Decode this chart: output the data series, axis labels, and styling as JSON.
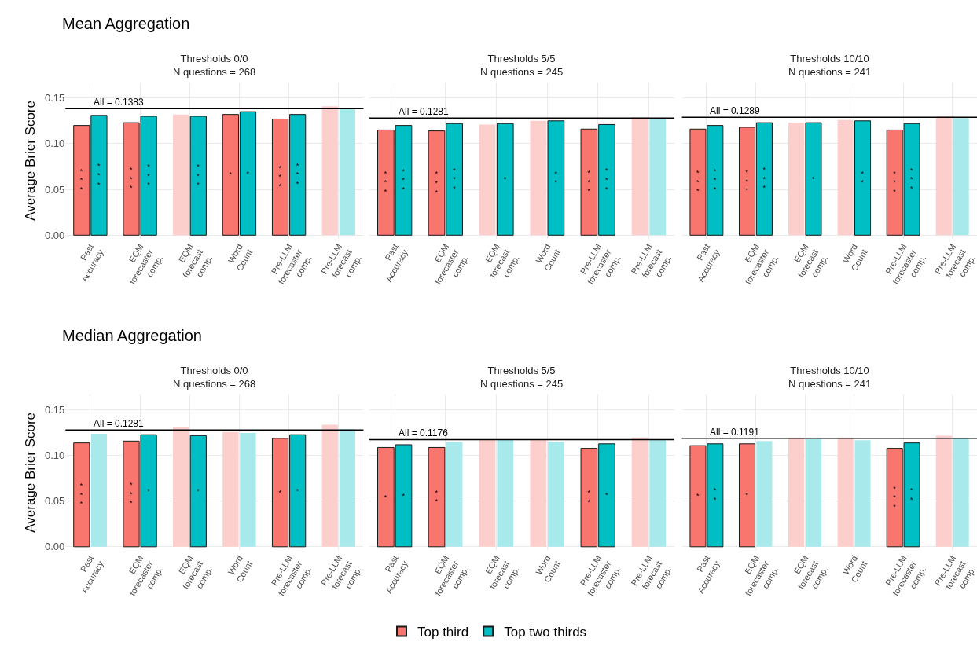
{
  "chart_data": [
    {
      "type": "bar",
      "title": "Thresholds 0/0\nN questions = 268",
      "annotations": [
        "Mean Aggregation"
      ],
      "ylabel": "Average Brier Score",
      "categories": [
        "Past\nAccuracy",
        "EQM\nforecaster\ncomp.",
        "EQM\nforecast\ncomp.",
        "Word\nCount",
        "Pre-LLM\nforecaster\ncomp.",
        "Pre-LLM\nforecast\ncomp."
      ],
      "series": [
        {
          "name": "Top third",
          "color": "#f8766d",
          "colors": [
            "#f8766d",
            "#f8766d",
            "#fccfcc",
            "#f8766d",
            "#f8766d",
            "#fccfcc"
          ],
          "values": [
            0.12,
            0.123,
            0.132,
            0.132,
            0.127,
            0.141
          ],
          "value_labels": [
            "*\n*\n*",
            "*\n*\n*",
            null,
            "*",
            "*\n*\n*",
            null
          ]
        },
        {
          "name": "Top two thirds",
          "color": "#00bfc4",
          "colors": [
            "#00bfc4",
            "#00bfc4",
            "#00bfc4",
            "#00bfc4",
            "#00bfc4",
            "#a8e9eb"
          ],
          "values": [
            0.131,
            0.13,
            0.13,
            0.135,
            0.132,
            0.138
          ],
          "value_labels": [
            "*\n*\n*",
            "*\n*\n*",
            "*\n*\n*",
            "*",
            "*\n*\n*",
            null
          ]
        }
      ],
      "ref_lines": [
        {
          "axis": "y",
          "value": 0.1383,
          "label": "All = 0.1383",
          "color": "#000000"
        }
      ],
      "ylim": [
        -0.004,
        0.167
      ],
      "yticks": [
        {
          "value": 0,
          "label": "0.00"
        },
        {
          "value": 0.05,
          "label": "0.05"
        },
        {
          "value": 0.1,
          "label": "0.10"
        },
        {
          "value": 0.15,
          "label": "0.15"
        }
      ],
      "grid": true,
      "legend": "bottom"
    },
    {
      "type": "bar",
      "title": "Thresholds 5/5\nN questions = 245",
      "categories": [
        "Past\nAccuracy",
        "EQM\nforecaster\ncomp.",
        "EQM\nforecast\ncomp.",
        "Word\nCount",
        "Pre-LLM\nforecaster\ncomp.",
        "Pre-LLM\nforecast\ncomp."
      ],
      "series": [
        {
          "color": "#f8766d",
          "colors": [
            "#f8766d",
            "#f8766d",
            "#fccfcc",
            "#fccfcc",
            "#f8766d",
            "#fccfcc"
          ],
          "values": [
            0.115,
            0.114,
            0.121,
            0.125,
            0.116,
            0.129
          ],
          "value_labels": [
            "*\n*\n*",
            "*\n*\n*",
            null,
            null,
            "*\n*\n*",
            null
          ]
        },
        {
          "color": "#00bfc4",
          "colors": [
            "#00bfc4",
            "#00bfc4",
            "#00bfc4",
            "#00bfc4",
            "#00bfc4",
            "#a8e9eb"
          ],
          "values": [
            0.12,
            0.122,
            0.122,
            0.125,
            0.121,
            0.128
          ],
          "value_labels": [
            "*\n*\n*",
            "*\n*\n*",
            "*",
            "*\n*",
            "*\n*\n*",
            null
          ]
        }
      ],
      "ref_lines": [
        {
          "axis": "y",
          "value": 0.1281,
          "label": "All = 0.1281",
          "color": "#000000"
        }
      ],
      "ylim": [
        -0.004,
        0.167
      ],
      "yticks": [
        {
          "value": 0,
          "label": null
        },
        {
          "value": 0.05,
          "label": null
        },
        {
          "value": 0.1,
          "label": null
        },
        {
          "value": 0.15,
          "label": null
        }
      ],
      "grid": true,
      "tick_labels": "x"
    },
    {
      "type": "bar",
      "title": "Thresholds 10/10\nN questions = 241",
      "categories": [
        "Past\nAccuracy",
        "EQM\nforecaster\ncomp.",
        "EQM\nforecast\ncomp.",
        "Word\nCount",
        "Pre-LLM\nforecaster\ncomp.",
        "Pre-LLM\nforecast\ncomp."
      ],
      "series": [
        {
          "color": "#f8766d",
          "colors": [
            "#f8766d",
            "#f8766d",
            "#fccfcc",
            "#fccfcc",
            "#f8766d",
            "#fccfcc"
          ],
          "values": [
            0.116,
            0.118,
            0.123,
            0.126,
            0.115,
            0.13
          ],
          "value_labels": [
            "*\n*\n*",
            "*\n*\n*",
            null,
            null,
            "*\n*\n*",
            null
          ]
        },
        {
          "color": "#00bfc4",
          "colors": [
            "#00bfc4",
            "#00bfc4",
            "#00bfc4",
            "#00bfc4",
            "#00bfc4",
            "#a8e9eb"
          ],
          "values": [
            0.12,
            0.123,
            0.123,
            0.125,
            0.122,
            0.128
          ],
          "value_labels": [
            "*\n*\n*",
            "*\n*\n*",
            "*",
            "*\n*",
            "*\n*\n*",
            null
          ]
        }
      ],
      "ref_lines": [
        {
          "axis": "y",
          "value": 0.1289,
          "label": "All = 0.1289",
          "color": "#000000"
        }
      ],
      "ylim": [
        -0.004,
        0.167
      ],
      "yticks": [
        {
          "value": 0,
          "label": null
        },
        {
          "value": 0.05,
          "label": null
        },
        {
          "value": 0.1,
          "label": null
        },
        {
          "value": 0.15,
          "label": null
        }
      ],
      "grid": true,
      "tick_labels": "x"
    },
    {
      "type": "bar",
      "title": "Thresholds 0/0\nN questions = 268",
      "annotations": [
        "Median Aggregation"
      ],
      "ylabel": "Average Brier Score",
      "categories": [
        "Past\nAccuracy",
        "EQM\nforecaster\ncomp.",
        "EQM\nforecast\ncomp.",
        "Word\nCount",
        "Pre-LLM\nforecaster\ncomp.",
        "Pre-LLM\nforecast\ncomp."
      ],
      "series": [
        {
          "color": "#f8766d",
          "colors": [
            "#f8766d",
            "#f8766d",
            "#fccfcc",
            "#fccfcc",
            "#f8766d",
            "#fccfcc"
          ],
          "values": [
            0.114,
            0.116,
            0.131,
            0.126,
            0.119,
            0.134
          ],
          "value_labels": [
            "*\n*\n*",
            "*\n*\n*",
            null,
            null,
            "*",
            null
          ]
        },
        {
          "color": "#00bfc4",
          "colors": [
            "#a8e9eb",
            "#00bfc4",
            "#00bfc4",
            "#a8e9eb",
            "#00bfc4",
            "#a8e9eb"
          ],
          "values": [
            0.124,
            0.123,
            0.122,
            0.125,
            0.123,
            0.129
          ],
          "value_labels": [
            null,
            "*",
            "*",
            null,
            "*",
            null
          ]
        }
      ],
      "ref_lines": [
        {
          "axis": "y",
          "value": 0.1281,
          "label": "All = 0.1281",
          "color": "#000000"
        }
      ],
      "ylim": [
        -0.004,
        0.167
      ],
      "yticks": [
        {
          "value": 0,
          "label": "0.00"
        },
        {
          "value": 0.05,
          "label": "0.05"
        },
        {
          "value": 0.1,
          "label": "0.10"
        },
        {
          "value": 0.15,
          "label": "0.15"
        }
      ],
      "grid": true
    },
    {
      "type": "bar",
      "title": "Thresholds 5/5\nN questions = 245",
      "categories": [
        "Past\nAccuracy",
        "EQM\nforecaster\ncomp.",
        "EQM\nforecast\ncomp.",
        "Word\nCount",
        "Pre-LLM\nforecaster\ncomp.",
        "Pre-LLM\nforecast\ncomp."
      ],
      "series": [
        {
          "color": "#f8766d",
          "colors": [
            "#f8766d",
            "#f8766d",
            "#fccfcc",
            "#fccfcc",
            "#f8766d",
            "#fccfcc"
          ],
          "values": [
            0.109,
            0.109,
            0.118,
            0.118,
            0.108,
            0.12
          ],
          "value_labels": [
            "*",
            "*\n*",
            null,
            null,
            "*\n*",
            null
          ]
        },
        {
          "color": "#00bfc4",
          "colors": [
            "#00bfc4",
            "#a8e9eb",
            "#a8e9eb",
            "#a8e9eb",
            "#00bfc4",
            "#a8e9eb"
          ],
          "values": [
            0.112,
            0.115,
            0.118,
            0.115,
            0.113,
            0.118
          ],
          "value_labels": [
            "*",
            null,
            null,
            null,
            "*",
            null
          ]
        }
      ],
      "ref_lines": [
        {
          "axis": "y",
          "value": 0.1176,
          "label": "All = 0.1176",
          "color": "#000000"
        }
      ],
      "ylim": [
        -0.004,
        0.167
      ],
      "yticks": [
        {
          "value": 0,
          "label": null
        },
        {
          "value": 0.05,
          "label": null
        },
        {
          "value": 0.1,
          "label": null
        },
        {
          "value": 0.15,
          "label": null
        }
      ],
      "grid": true,
      "tick_labels": "x"
    },
    {
      "type": "bar",
      "title": "Thresholds 10/10\nN questions = 241",
      "categories": [
        "Past\nAccuracy",
        "EQM\nforecaster\ncomp.",
        "EQM\nforecast\ncomp.",
        "Word\nCount",
        "Pre-LLM\nforecaster\ncomp.",
        "Pre-LLM\nforecast\ncomp."
      ],
      "series": [
        {
          "color": "#f8766d",
          "colors": [
            "#f8766d",
            "#f8766d",
            "#fccfcc",
            "#fccfcc",
            "#f8766d",
            "#fccfcc"
          ],
          "values": [
            0.111,
            0.113,
            0.12,
            0.12,
            0.108,
            0.122
          ],
          "value_labels": [
            "*",
            "*",
            null,
            null,
            "*\n*\n*",
            null
          ]
        },
        {
          "color": "#00bfc4",
          "colors": [
            "#00bfc4",
            "#a8e9eb",
            "#a8e9eb",
            "#a8e9eb",
            "#00bfc4",
            "#a8e9eb"
          ],
          "values": [
            0.113,
            0.116,
            0.118,
            0.117,
            0.114,
            0.119
          ],
          "value_labels": [
            "*\n*",
            null,
            null,
            null,
            "*\n*",
            null
          ]
        }
      ],
      "ref_lines": [
        {
          "axis": "y",
          "value": 0.1191,
          "label": "All = 0.1191",
          "color": "#000000"
        }
      ],
      "ylim": [
        -0.004,
        0.167
      ],
      "yticks": [
        {
          "value": 0,
          "label": null
        },
        {
          "value": 0.05,
          "label": null
        },
        {
          "value": 0.1,
          "label": null
        },
        {
          "value": 0.15,
          "label": null
        }
      ],
      "grid": true,
      "tick_labels": "x"
    }
  ]
}
